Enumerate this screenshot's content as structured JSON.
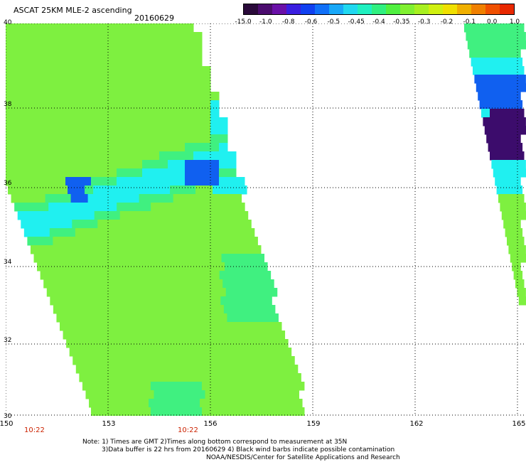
{
  "header": {
    "title": "ASCAT 25KM MLE-2 ascending",
    "date": "20160629"
  },
  "colorbar": {
    "labels": [
      "-15.0",
      "-1.0",
      "-0.8",
      "-0.6",
      "-0.5",
      "-0.45",
      "-0.4",
      "-0.35",
      "-0.3",
      "-0.2",
      "-0.1",
      "0.0",
      "1.0"
    ],
    "colors": [
      "#2a0a3a",
      "#4b0c6e",
      "#6a10a8",
      "#3a1ee0",
      "#1040f0",
      "#1070f8",
      "#18a8f8",
      "#20d8f0",
      "#20f0c0",
      "#30f080",
      "#50f040",
      "#80f030",
      "#a8f020",
      "#d0f010",
      "#f0e000",
      "#f0b000",
      "#f08000",
      "#f05000",
      "#e82800"
    ]
  },
  "axes": {
    "lat_labels": [
      "40",
      "38",
      "36",
      "34",
      "32",
      "30"
    ],
    "lon_labels": [
      "150",
      "153",
      "156",
      "159",
      "162",
      "165"
    ],
    "lat_range": [
      30,
      40
    ],
    "lon_range": [
      150,
      165
    ]
  },
  "time_labels": [
    "10:22",
    "10:22"
  ],
  "notes": {
    "line1": "Note: 1) Times are GMT 2)Times along bottom correspond to measurement at 35N",
    "line2": "3)Data buffer is 22 hrs from 20160629 4) Black wind barbs indicate possible contamination",
    "line3": "NOAA/NESDIS/Center for Satellite Applications and Research"
  },
  "legend_colors": {
    "background_swath": "#7ef040",
    "mid": "#40f080",
    "cyan": "#20f0f0",
    "blue": "#1060f0",
    "dark_blue": "#1a10c8",
    "purple": "#3c0c6c"
  }
}
